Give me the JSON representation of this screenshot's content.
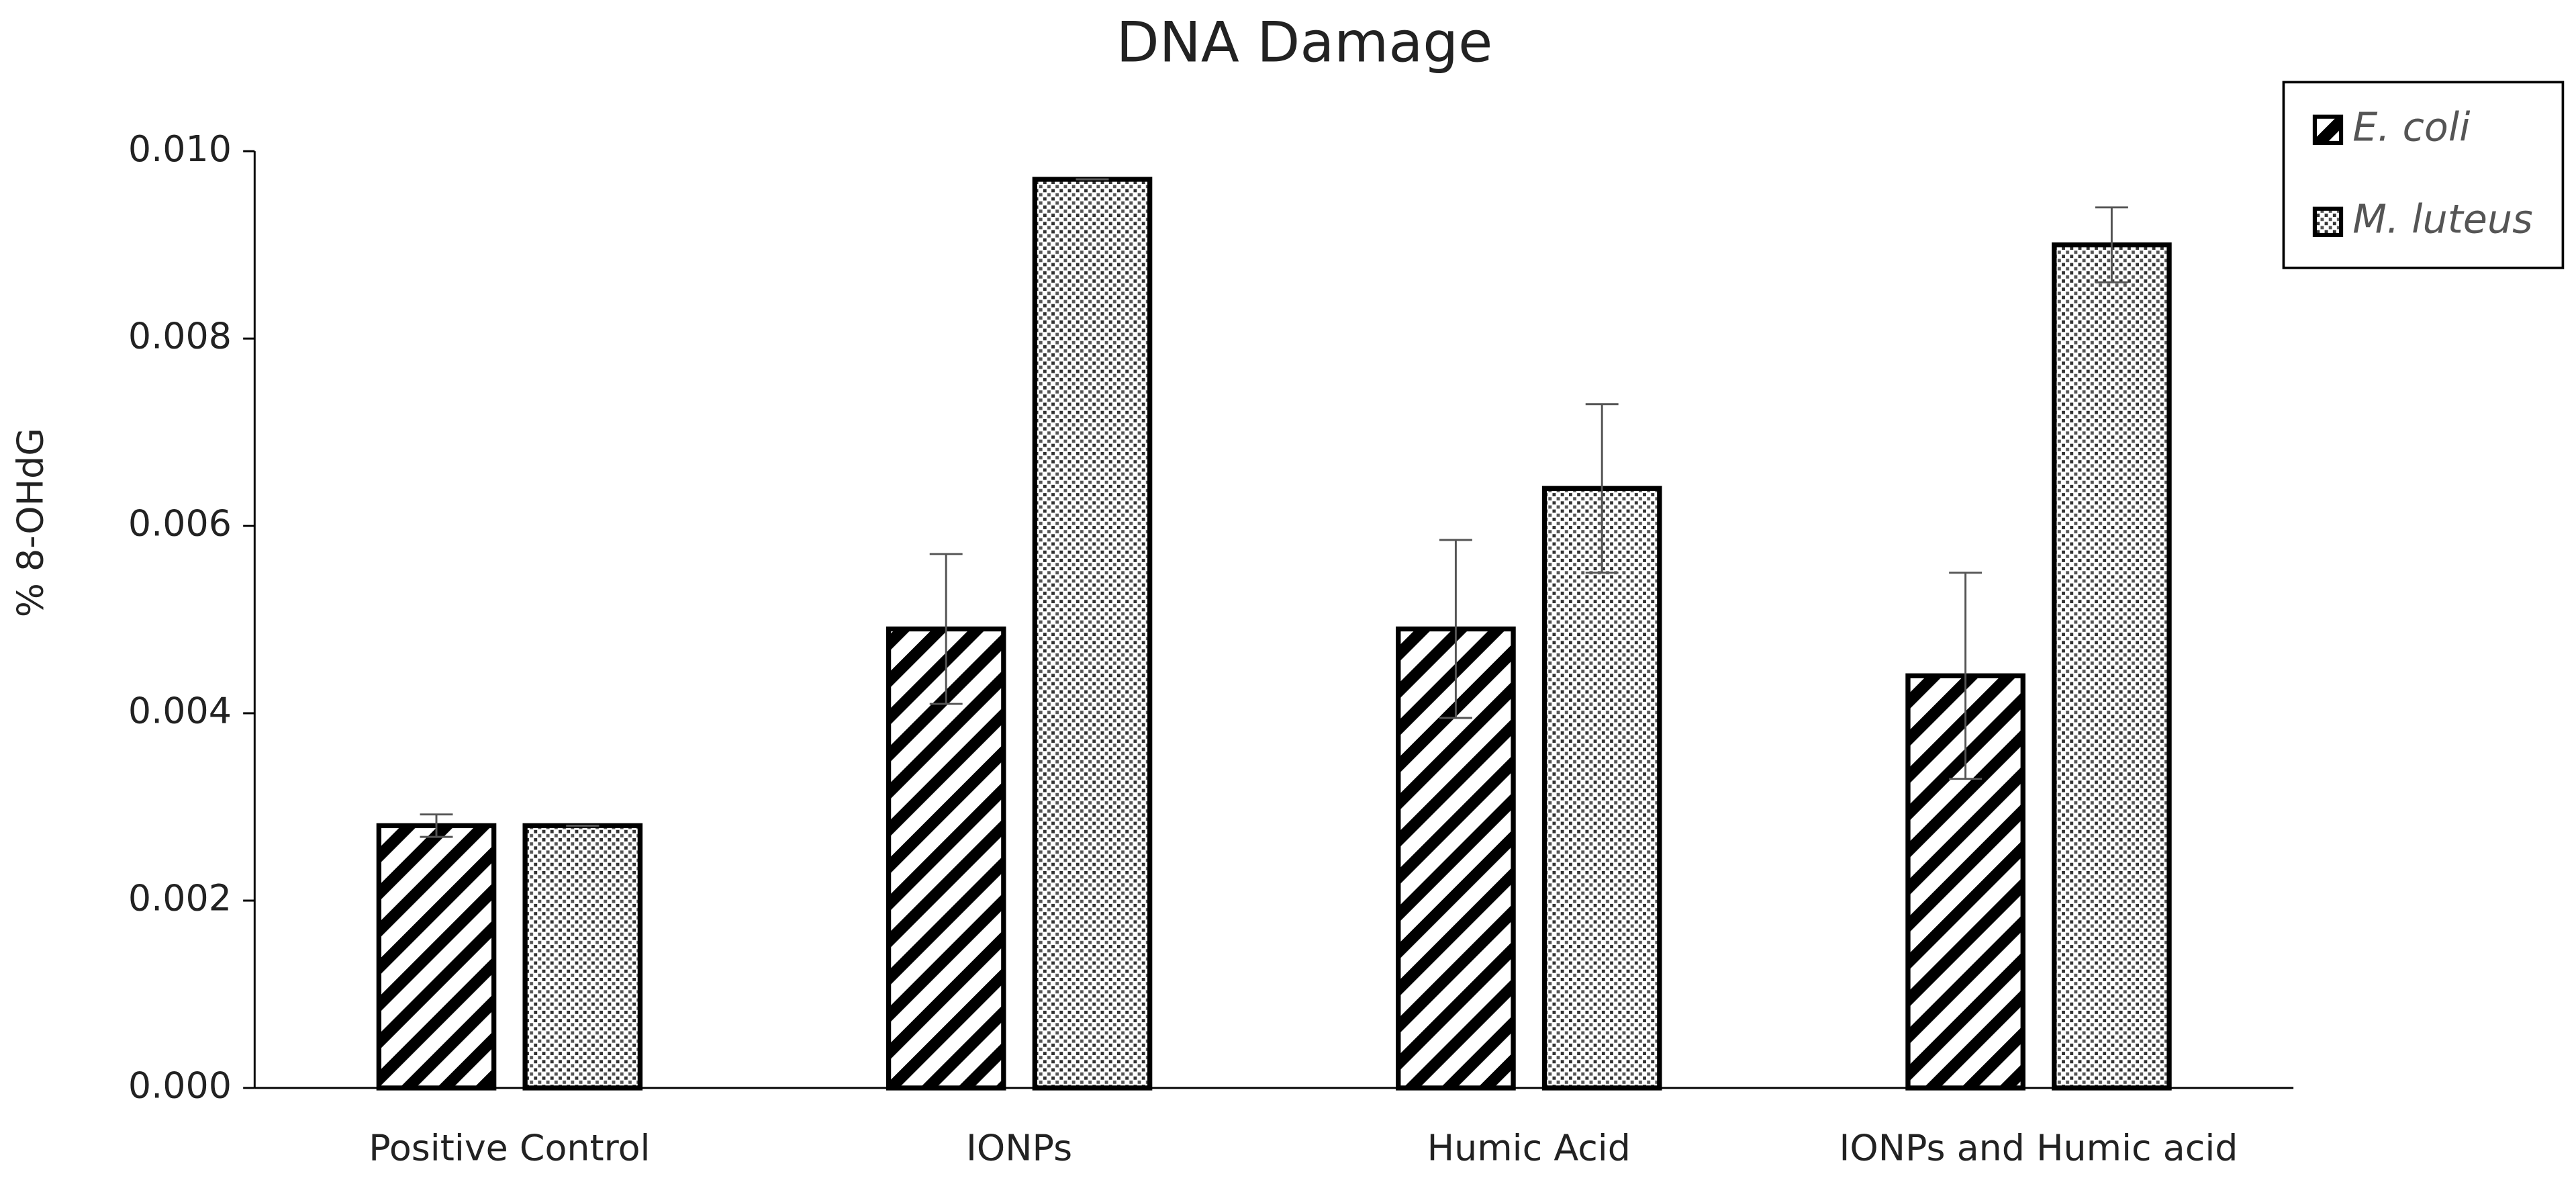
{
  "chart_data": {
    "type": "bar",
    "title": "DNA Damage",
    "y_label": "% 8-OHdG",
    "categories": [
      "Positive Control",
      "IONPs",
      "Humic Acid",
      "IONPs and Humic acid"
    ],
    "series": [
      {
        "name": "E. coli",
        "pattern": "hatch",
        "color": "#000000",
        "values": [
          0.0028,
          0.0049,
          0.0049,
          0.0044
        ],
        "errors": [
          0.00012,
          0.0008,
          0.00095,
          0.0011
        ]
      },
      {
        "name": "M. luteus",
        "pattern": "dots",
        "color": "#000000",
        "values": [
          0.0028,
          0.0097,
          0.0064,
          0.009
        ],
        "errors": [
          0,
          0,
          0.0009,
          0.0004
        ]
      }
    ],
    "ylim": [
      0,
      0.01
    ],
    "yticks": [
      {
        "value": 0,
        "label": "0.000"
      },
      0.002,
      0.004,
      0.006,
      0.008,
      {
        "value": 0.01,
        "label": "0.010"
      }
    ],
    "grid": false,
    "legend": "top-right"
  }
}
